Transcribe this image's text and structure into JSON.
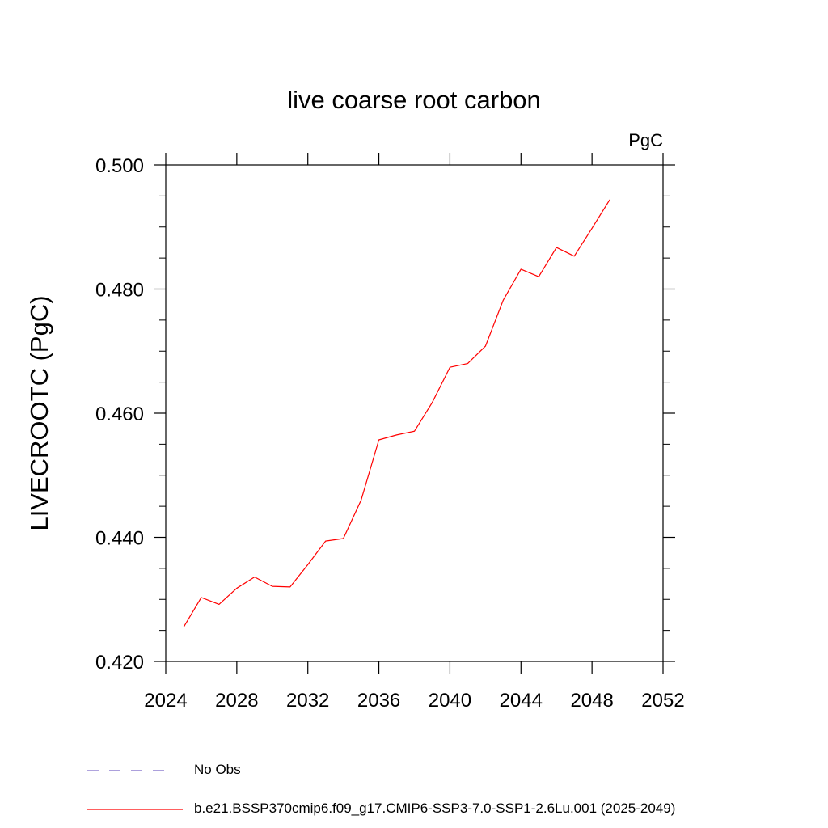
{
  "chart_data": {
    "type": "line",
    "title": "live coarse root carbon",
    "units_label": "PgC",
    "ylabel": "LIVECROOTC  (PgC)",
    "xlabel": "",
    "xlim": [
      2024,
      2052
    ],
    "ylim": [
      0.42,
      0.5
    ],
    "x_ticks": [
      "2024",
      "2028",
      "2032",
      "2036",
      "2040",
      "2044",
      "2048",
      "2052"
    ],
    "y_ticks": [
      "0.420",
      "0.440",
      "0.460",
      "0.480",
      "0.500"
    ],
    "grid": false,
    "legend_position": "bottom",
    "series": [
      {
        "name": "b.e21.BSSP370cmip6.f09_g17.CMIP6-SSP3-7.0-SSP1-2.6Lu.001 (2025-2049)",
        "color": "#ff0000",
        "x": [
          2025,
          2026,
          2027,
          2028,
          2029,
          2030,
          2031,
          2032,
          2033,
          2034,
          2035,
          2036,
          2037,
          2038,
          2039,
          2040,
          2041,
          2042,
          2043,
          2044,
          2045,
          2046,
          2047,
          2048,
          2049
        ],
        "values": [
          0.4255,
          0.4303,
          0.4292,
          0.4318,
          0.4336,
          0.4321,
          0.432,
          0.4356,
          0.4394,
          0.4398,
          0.446,
          0.4557,
          0.4565,
          0.4571,
          0.4617,
          0.4674,
          0.468,
          0.4708,
          0.4782,
          0.4832,
          0.482,
          0.4867,
          0.4853,
          0.4898,
          0.4944
        ]
      }
    ],
    "legend": [
      {
        "label": "No Obs",
        "color": "#7b68c8",
        "dash": "dashed"
      },
      {
        "label": "b.e21.BSSP370cmip6.f09_g17.CMIP6-SSP3-7.0-SSP1-2.6Lu.001 (2025-2049)",
        "color": "#ff0000",
        "dash": "solid"
      }
    ]
  }
}
